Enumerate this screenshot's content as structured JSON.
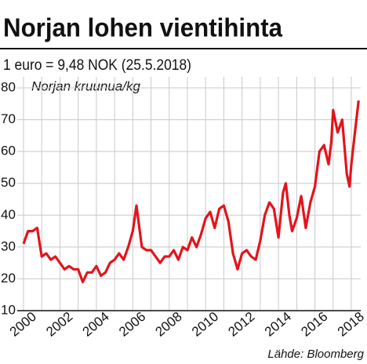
{
  "chart_data": {
    "type": "line",
    "title": "Norjan lohen vientihinta",
    "subtitle": "1 euro = 9,48 NOK (25.5.2018)",
    "y_label": "Norjan kruunua/kg",
    "source": "Lähde: Bloomberg",
    "x": [
      2000.0,
      2000.25,
      2000.5,
      2000.75,
      2001.0,
      2001.25,
      2001.5,
      2001.75,
      2002.0,
      2002.25,
      2002.5,
      2002.75,
      2003.0,
      2003.25,
      2003.5,
      2003.75,
      2004.0,
      2004.25,
      2004.5,
      2004.75,
      2005.0,
      2005.25,
      2005.5,
      2005.75,
      2006.0,
      2006.2,
      2006.5,
      2006.75,
      2007.0,
      2007.25,
      2007.5,
      2007.75,
      2008.0,
      2008.25,
      2008.5,
      2008.75,
      2009.0,
      2009.25,
      2009.5,
      2009.75,
      2010.0,
      2010.25,
      2010.5,
      2010.75,
      2011.0,
      2011.25,
      2011.5,
      2011.75,
      2012.0,
      2012.25,
      2012.5,
      2012.75,
      2013.0,
      2013.25,
      2013.5,
      2013.75,
      2014.0,
      2014.25,
      2014.4,
      2014.6,
      2014.75,
      2015.0,
      2015.25,
      2015.5,
      2015.75,
      2016.0,
      2016.25,
      2016.5,
      2016.75,
      2016.9,
      2017.0,
      2017.25,
      2017.5,
      2017.75,
      2017.9,
      2018.0,
      2018.2,
      2018.4
    ],
    "series": [
      {
        "name": "Norjan lohen vientihinta",
        "color": "#e3141b",
        "values": [
          31,
          35,
          35,
          36,
          27,
          28,
          26,
          27,
          25,
          23,
          24,
          23,
          23,
          19,
          22,
          22,
          24,
          21,
          22,
          25,
          26,
          28,
          26,
          30,
          35,
          43,
          30,
          29,
          29,
          27,
          25,
          27,
          27,
          29,
          26,
          30,
          29,
          33,
          30,
          34,
          39,
          41,
          36,
          42,
          43,
          38,
          28,
          23,
          28,
          29,
          27,
          26,
          32,
          40,
          44,
          42,
          33,
          47,
          50,
          40,
          35,
          39,
          46,
          36,
          44,
          49,
          60,
          62,
          56,
          63,
          73,
          66,
          70,
          53,
          49,
          56,
          66,
          76
        ]
      }
    ],
    "xlim": [
      2000,
      2018
    ],
    "xticks": [
      2000,
      2002,
      2004,
      2006,
      2008,
      2010,
      2012,
      2014,
      2016,
      2018
    ],
    "xminorticks": [
      2001,
      2003,
      2005,
      2007,
      2009,
      2011,
      2013,
      2015,
      2017
    ],
    "ylim": [
      10,
      80
    ],
    "yticks": [
      10,
      20,
      30,
      40,
      50,
      60,
      70,
      80
    ],
    "grid": true
  }
}
